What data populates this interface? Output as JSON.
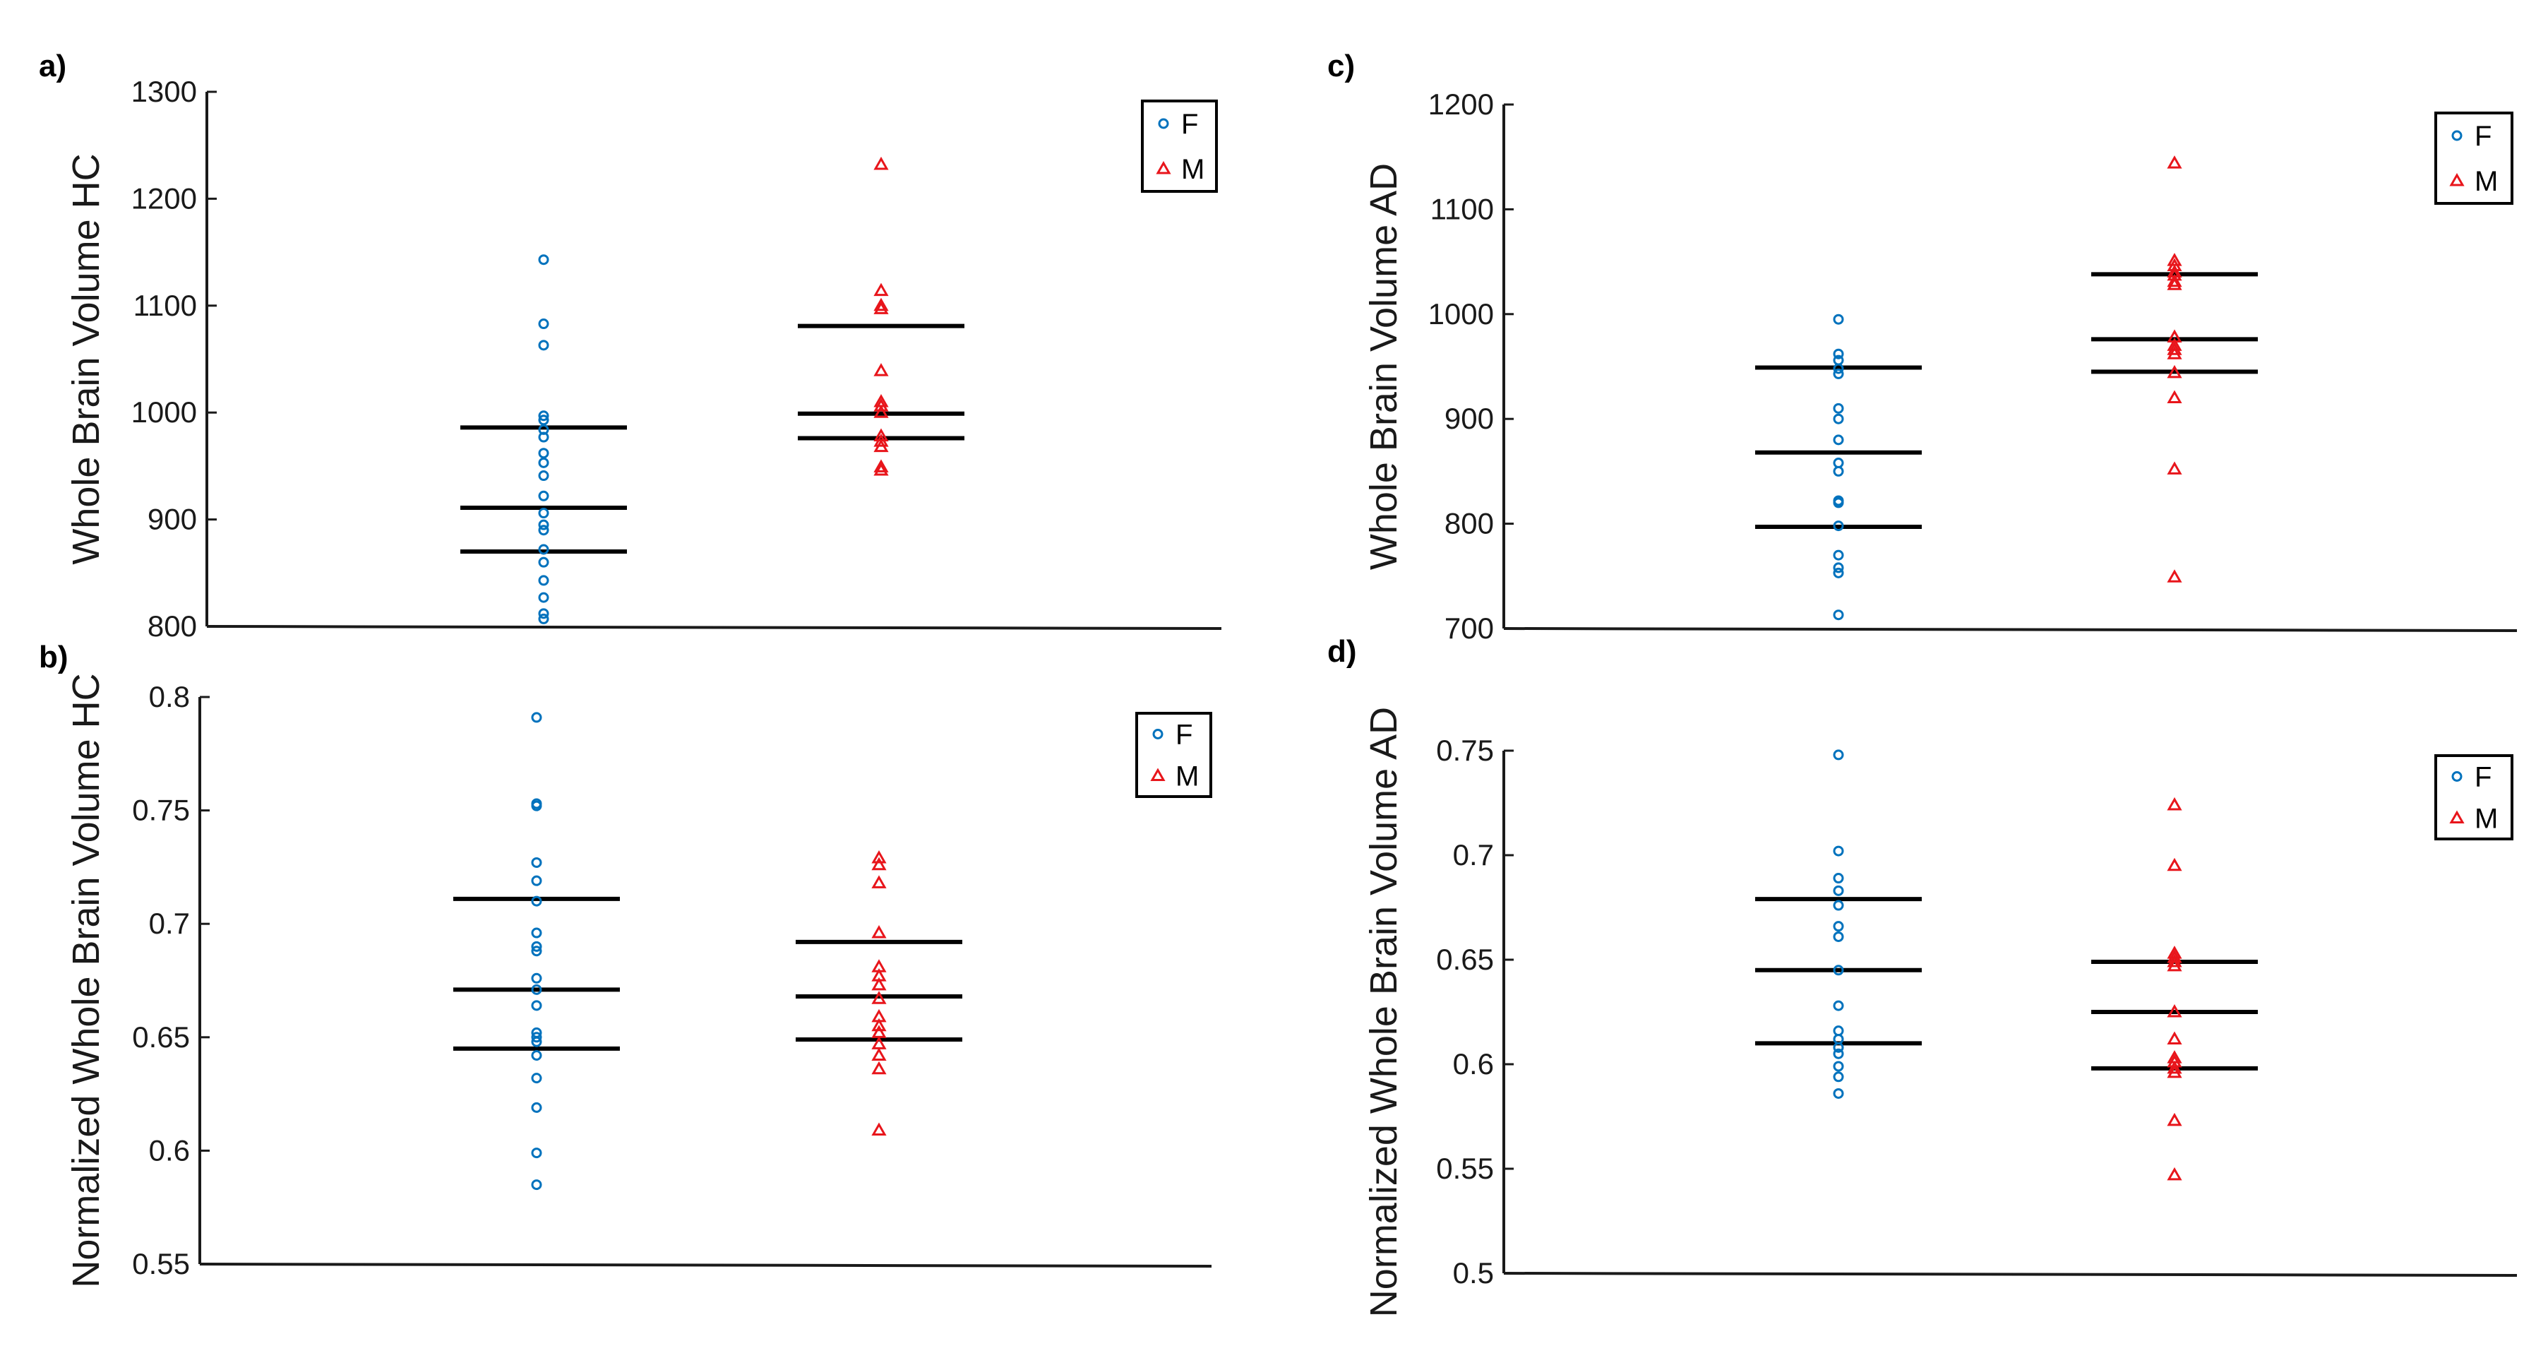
{
  "colors": {
    "F": "#0072BD",
    "M": "#E8151B",
    "axis": "#1a1a1a",
    "bar": "#000000"
  },
  "chart_data": [
    {
      "panel": "a)",
      "type": "scatter",
      "ylabel": "Whole Brain Volume HC",
      "ylim": [
        800,
        1300
      ],
      "yticks": [
        800,
        900,
        1000,
        1100,
        1200,
        1300
      ],
      "ytick_labels": [
        "800",
        "900",
        "1000",
        "1100",
        "1200",
        "1300"
      ],
      "legend": {
        "position": "top-right",
        "entries": [
          "F",
          "M"
        ]
      },
      "series": [
        {
          "name": "F",
          "marker": "circle",
          "color": "#0072BD",
          "values": [
            1143,
            1083,
            1063,
            997,
            993,
            984,
            977,
            962,
            953,
            941,
            922,
            906,
            895,
            890,
            872,
            860,
            843,
            827,
            812,
            807
          ]
        },
        {
          "name": "M",
          "marker": "triangle",
          "color": "#E8151B",
          "values": [
            1232,
            1114,
            1100,
            1097,
            1039,
            1010,
            1006,
            1000,
            978,
            973,
            968,
            949,
            946
          ]
        }
      ],
      "stat_lines": [
        {
          "series": "F",
          "values": [
            870,
            911,
            986
          ]
        },
        {
          "series": "M",
          "values": [
            976,
            999,
            1081
          ]
        }
      ]
    },
    {
      "panel": "b)",
      "type": "scatter",
      "ylabel": "Normalized  Whole Brain Volume HC",
      "ylim": [
        0.55,
        0.8
      ],
      "yticks": [
        0.55,
        0.6,
        0.65,
        0.7,
        0.75,
        0.8
      ],
      "ytick_labels": [
        "0.55",
        "0.6",
        "0.65",
        "0.7",
        "0.75",
        "0.8"
      ],
      "legend": {
        "position": "top-right",
        "entries": [
          "F",
          "M"
        ]
      },
      "series": [
        {
          "name": "F",
          "marker": "circle",
          "color": "#0072BD",
          "values": [
            0.791,
            0.753,
            0.752,
            0.727,
            0.719,
            0.71,
            0.696,
            0.69,
            0.688,
            0.676,
            0.671,
            0.664,
            0.652,
            0.65,
            0.648,
            0.642,
            0.632,
            0.619,
            0.599,
            0.585
          ]
        },
        {
          "name": "M",
          "marker": "triangle",
          "color": "#E8151B",
          "values": [
            0.729,
            0.726,
            0.718,
            0.696,
            0.681,
            0.677,
            0.673,
            0.667,
            0.659,
            0.655,
            0.652,
            0.647,
            0.642,
            0.636,
            0.609
          ]
        }
      ],
      "stat_lines": [
        {
          "series": "F",
          "values": [
            0.645,
            0.671,
            0.711
          ]
        },
        {
          "series": "M",
          "values": [
            0.649,
            0.668,
            0.692
          ]
        }
      ]
    },
    {
      "panel": "c)",
      "type": "scatter",
      "ylabel": "Whole Brain Volume AD",
      "ylim": [
        700,
        1200
      ],
      "yticks": [
        700,
        800,
        900,
        1000,
        1100,
        1200
      ],
      "ytick_labels": [
        "700",
        "800",
        "900",
        "1000",
        "1100",
        "1200"
      ],
      "legend": {
        "position": "top-right",
        "entries": [
          "F",
          "M"
        ]
      },
      "series": [
        {
          "name": "F",
          "marker": "circle",
          "color": "#0072BD",
          "values": [
            995,
            962,
            956,
            948,
            943,
            910,
            900,
            880,
            858,
            850,
            822,
            820,
            798,
            770,
            758,
            753,
            713
          ]
        },
        {
          "name": "M",
          "marker": "triangle",
          "color": "#E8151B",
          "values": [
            1144,
            1051,
            1046,
            1040,
            1037,
            1031,
            1028,
            978,
            970,
            966,
            962,
            944,
            920,
            852,
            749
          ]
        }
      ],
      "stat_lines": [
        {
          "series": "F",
          "values": [
            797,
            868,
            949
          ]
        },
        {
          "series": "M",
          "values": [
            945,
            976,
            1038
          ]
        }
      ]
    },
    {
      "panel": "d)",
      "type": "scatter",
      "ylabel": "Normalized Whole Brain Volume AD",
      "ylim": [
        0.5,
        0.75
      ],
      "yticks": [
        0.5,
        0.55,
        0.6,
        0.65,
        0.7,
        0.75
      ],
      "ytick_labels": [
        "0.5",
        "0.55",
        "0.6",
        "0.65",
        "0.7",
        "0.75"
      ],
      "legend": {
        "position": "top-right",
        "entries": [
          "F",
          "M"
        ]
      },
      "series": [
        {
          "name": "F",
          "marker": "circle",
          "color": "#0072BD",
          "values": [
            0.748,
            0.702,
            0.689,
            0.683,
            0.676,
            0.666,
            0.661,
            0.645,
            0.628,
            0.616,
            0.612,
            0.608,
            0.605,
            0.599,
            0.594,
            0.586
          ]
        },
        {
          "name": "M",
          "marker": "triangle",
          "color": "#E8151B",
          "values": [
            0.724,
            0.695,
            0.653,
            0.651,
            0.649,
            0.647,
            0.625,
            0.612,
            0.603,
            0.601,
            0.598,
            0.596,
            0.573,
            0.547
          ]
        }
      ],
      "stat_lines": [
        {
          "series": "F",
          "values": [
            0.61,
            0.645,
            0.679
          ]
        },
        {
          "series": "M",
          "values": [
            0.598,
            0.625,
            0.649
          ]
        }
      ]
    }
  ]
}
